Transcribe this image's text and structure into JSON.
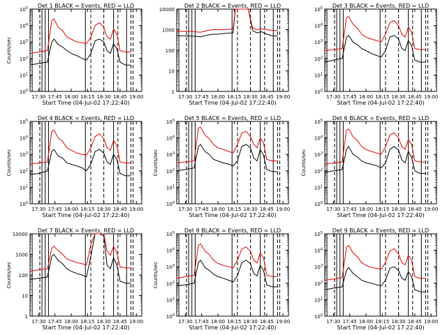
{
  "figure": {
    "x_ticks": [
      "17:30",
      "17:45",
      "18:00",
      "18:15",
      "18:30",
      "18:45",
      "19:00"
    ],
    "xlabel": "Start Time (04-Jul-02 17:22:40)",
    "ylabel": "Counts/sec",
    "colors": {
      "events": "#000000",
      "lld": "#e00000"
    }
  },
  "chart_data": [
    {
      "type": "line",
      "title": "Det 1 BLACK = Events, RED = LLD",
      "y_scale": "log",
      "ylim": [
        1,
        100000
      ],
      "y_ticks": [
        "10^0",
        "10^1",
        "10^2",
        "10^3",
        "10^4",
        "10^5"
      ],
      "ylabel": "Counts/sec",
      "x": [
        "17:22",
        "17:30",
        "17:38",
        "17:42",
        "17:44",
        "17:48",
        "17:52",
        "17:56",
        "18:00",
        "18:05",
        "18:10",
        "18:14",
        "18:18",
        "18:22",
        "18:26",
        "18:30",
        "18:33",
        "18:36",
        "18:39",
        "18:42",
        "18:45",
        "18:50",
        "18:55"
      ],
      "series": [
        {
          "name": "Events",
          "values": [
            40,
            50,
            60,
            1000,
            1500,
            700,
            500,
            300,
            200,
            150,
            100,
            80,
            200,
            1200,
            1500,
            1000,
            300,
            200,
            800,
            400,
            60,
            40,
            40
          ]
        },
        {
          "name": "LLD",
          "values": [
            200,
            250,
            300,
            20000,
            25000,
            8000,
            5000,
            2000,
            1500,
            1000,
            900,
            800,
            2000,
            10000,
            15000,
            8000,
            2000,
            1500,
            6000,
            3000,
            300,
            250,
            250
          ]
        }
      ]
    },
    {
      "type": "line",
      "title": "Det 2 BLACK = Events, RED = LLD",
      "y_scale": "log",
      "ylim": [
        1,
        10000
      ],
      "y_ticks": [
        "1",
        "10",
        "100",
        "1000",
        "10000"
      ],
      "ylabel": "",
      "x": [
        "17:22",
        "17:30",
        "17:38",
        "17:44",
        "17:50",
        "17:56",
        "18:00",
        "18:05",
        "18:10",
        "18:14",
        "18:16",
        "18:20",
        "18:28",
        "18:32",
        "18:36",
        "18:40",
        "18:45",
        "18:50",
        "18:55"
      ],
      "series": [
        {
          "name": "Events",
          "values": [
            500,
            500,
            480,
            450,
            550,
            600,
            600,
            650,
            680,
            700,
            10000,
            10000,
            10000,
            900,
            700,
            800,
            600,
            500,
            500
          ]
        },
        {
          "name": "LLD",
          "values": [
            800,
            850,
            800,
            750,
            900,
            1000,
            1000,
            1000,
            1050,
            1100,
            10000,
            10000,
            10000,
            1200,
            1000,
            1100,
            1000,
            900,
            900
          ]
        }
      ]
    },
    {
      "type": "line",
      "title": "Det 3 BLACK = Events, RED = LLD",
      "y_scale": "log",
      "ylim": [
        1,
        100000
      ],
      "y_ticks": [
        "10^0",
        "10^1",
        "10^2",
        "10^3",
        "10^4",
        "10^5"
      ],
      "ylabel": "",
      "x": [
        "17:22",
        "17:30",
        "17:38",
        "17:42",
        "17:44",
        "17:48",
        "17:52",
        "17:56",
        "18:00",
        "18:05",
        "18:10",
        "18:14",
        "18:18",
        "18:22",
        "18:26",
        "18:30",
        "18:33",
        "18:36",
        "18:39",
        "18:42",
        "18:45",
        "18:50",
        "18:55"
      ],
      "series": [
        {
          "name": "Events",
          "values": [
            60,
            80,
            100,
            2000,
            2500,
            1000,
            700,
            400,
            300,
            200,
            150,
            120,
            300,
            2000,
            2500,
            1500,
            400,
            300,
            1200,
            600,
            80,
            60,
            60
          ]
        },
        {
          "name": "LLD",
          "values": [
            300,
            350,
            400,
            30000,
            35000,
            12000,
            7000,
            3000,
            2000,
            1500,
            1200,
            1000,
            3000,
            15000,
            20000,
            10000,
            3000,
            2000,
            8000,
            4000,
            400,
            350,
            350
          ]
        }
      ]
    },
    {
      "type": "line",
      "title": "Det 4 BLACK = Events, RED = LLD",
      "y_scale": "log",
      "ylim": [
        1,
        100000
      ],
      "y_ticks": [
        "10^0",
        "10^1",
        "10^2",
        "10^3",
        "10^4",
        "10^5"
      ],
      "ylabel": "Counts/sec",
      "x": [
        "17:22",
        "17:30",
        "17:38",
        "17:42",
        "17:44",
        "17:48",
        "17:52",
        "17:56",
        "18:00",
        "18:05",
        "18:10",
        "18:14",
        "18:18",
        "18:22",
        "18:26",
        "18:30",
        "18:33",
        "18:36",
        "18:39",
        "18:42",
        "18:45",
        "18:50",
        "18:55"
      ],
      "series": [
        {
          "name": "Events",
          "values": [
            60,
            70,
            100,
            1500,
            2000,
            800,
            600,
            300,
            250,
            200,
            150,
            100,
            250,
            1500,
            2000,
            1200,
            350,
            250,
            1000,
            500,
            70,
            50,
            50
          ]
        },
        {
          "name": "LLD",
          "values": [
            250,
            300,
            350,
            25000,
            30000,
            10000,
            6000,
            2500,
            1800,
            1200,
            1000,
            900,
            2500,
            12000,
            18000,
            9000,
            2500,
            1800,
            7000,
            3500,
            350,
            300,
            300
          ]
        }
      ]
    },
    {
      "type": "line",
      "title": "Det 5 BLACK = Events, RED = LLD",
      "y_scale": "log",
      "ylim": [
        1,
        100000
      ],
      "y_ticks": [
        "10^0",
        "10^1",
        "10^2",
        "10^3",
        "10^4",
        "10^5"
      ],
      "ylabel": "Counts/sec",
      "x": [
        "17:22",
        "17:30",
        "17:38",
        "17:42",
        "17:44",
        "17:48",
        "17:52",
        "17:56",
        "18:00",
        "18:05",
        "18:10",
        "18:14",
        "18:18",
        "18:22",
        "18:26",
        "18:30",
        "18:33",
        "18:36",
        "18:39",
        "18:42",
        "18:45",
        "18:50",
        "18:55"
      ],
      "series": [
        {
          "name": "Events",
          "values": [
            100,
            120,
            150,
            3000,
            4000,
            1500,
            1000,
            500,
            400,
            300,
            250,
            200,
            400,
            3000,
            4000,
            2500,
            600,
            400,
            2000,
            900,
            120,
            90,
            90
          ]
        },
        {
          "name": "LLD",
          "values": [
            300,
            350,
            400,
            40000,
            45000,
            15000,
            9000,
            4000,
            2500,
            2000,
            1500,
            1200,
            4000,
            20000,
            25000,
            12000,
            4000,
            2500,
            10000,
            5000,
            500,
            400,
            400
          ]
        }
      ]
    },
    {
      "type": "line",
      "title": "Det 6 BLACK = Events, RED = LLD",
      "y_scale": "log",
      "ylim": [
        1,
        100000
      ],
      "y_ticks": [
        "10^0",
        "10^1",
        "10^2",
        "10^3",
        "10^4",
        "10^5"
      ],
      "ylabel": "Counts/sec",
      "x": [
        "17:22",
        "17:30",
        "17:38",
        "17:42",
        "17:44",
        "17:48",
        "17:52",
        "17:56",
        "18:00",
        "18:05",
        "18:10",
        "18:14",
        "18:18",
        "18:22",
        "18:26",
        "18:30",
        "18:33",
        "18:36",
        "18:39",
        "18:42",
        "18:45",
        "18:50",
        "18:55"
      ],
      "series": [
        {
          "name": "Events",
          "values": [
            80,
            100,
            120,
            2000,
            3000,
            1000,
            700,
            400,
            300,
            250,
            200,
            150,
            300,
            2000,
            3000,
            1800,
            450,
            300,
            1500,
            700,
            100,
            70,
            70
          ]
        },
        {
          "name": "LLD",
          "values": [
            250,
            300,
            350,
            30000,
            35000,
            12000,
            7000,
            3000,
            2000,
            1500,
            1200,
            1000,
            3000,
            15000,
            20000,
            10000,
            3000,
            2000,
            8000,
            4000,
            400,
            350,
            350
          ]
        }
      ]
    },
    {
      "type": "line",
      "title": "Det 7 BLACK = Events, RED = LLD",
      "y_scale": "log",
      "ylim": [
        1,
        10000
      ],
      "y_ticks": [
        "1",
        "10",
        "100",
        "1000",
        "10000"
      ],
      "ylabel": "Counts/sec",
      "x": [
        "17:22",
        "17:30",
        "17:38",
        "17:42",
        "17:44",
        "17:48",
        "17:52",
        "17:56",
        "18:00",
        "18:05",
        "18:10",
        "18:14",
        "18:18",
        "18:22",
        "18:26",
        "18:30",
        "18:33",
        "18:36",
        "18:39",
        "18:42",
        "18:45",
        "18:50",
        "18:55"
      ],
      "series": [
        {
          "name": "Events",
          "values": [
            60,
            70,
            80,
            800,
            1000,
            500,
            350,
            200,
            150,
            120,
            100,
            80,
            800,
            10000,
            10000,
            8000,
            300,
            200,
            700,
            300,
            50,
            40,
            40
          ]
        },
        {
          "name": "LLD",
          "values": [
            150,
            180,
            200,
            2000,
            2500,
            1500,
            1000,
            600,
            500,
            400,
            350,
            300,
            3000,
            10000,
            10000,
            10000,
            1500,
            900,
            2500,
            1200,
            250,
            220,
            220
          ]
        }
      ]
    },
    {
      "type": "line",
      "title": "Det 8 BLACK = Events, RED = LLD",
      "y_scale": "log",
      "ylim": [
        1,
        100000
      ],
      "y_ticks": [
        "10^0",
        "10^1",
        "10^2",
        "10^3",
        "10^4",
        "10^5"
      ],
      "ylabel": "Counts/sec",
      "x": [
        "17:22",
        "17:30",
        "17:38",
        "17:42",
        "17:44",
        "17:48",
        "17:52",
        "17:56",
        "18:00",
        "18:05",
        "18:10",
        "18:14",
        "18:18",
        "18:22",
        "18:26",
        "18:30",
        "18:33",
        "18:36",
        "18:39",
        "18:42",
        "18:45",
        "18:50",
        "18:55"
      ],
      "series": [
        {
          "name": "Events",
          "values": [
            70,
            80,
            100,
            1800,
            2500,
            900,
            600,
            350,
            250,
            200,
            150,
            120,
            280,
            1800,
            2500,
            1500,
            380,
            280,
            1200,
            600,
            80,
            60,
            60
          ]
        },
        {
          "name": "LLD",
          "values": [
            200,
            250,
            300,
            20000,
            25000,
            9000,
            5500,
            2500,
            1600,
            1200,
            1000,
            850,
            2500,
            12000,
            16000,
            8500,
            2500,
            1700,
            7000,
            3500,
            300,
            250,
            250
          ]
        }
      ]
    },
    {
      "type": "line",
      "title": "Det 9 BLACK = Events, RED = LLD",
      "y_scale": "log",
      "ylim": [
        1,
        100000
      ],
      "y_ticks": [
        "10^0",
        "10^1",
        "10^2",
        "10^3",
        "10^4",
        "10^5"
      ],
      "ylabel": "",
      "x": [
        "17:22",
        "17:30",
        "17:38",
        "17:42",
        "17:44",
        "17:48",
        "17:52",
        "17:56",
        "18:00",
        "18:05",
        "18:10",
        "18:14",
        "18:18",
        "18:22",
        "18:26",
        "18:30",
        "18:33",
        "18:36",
        "18:39",
        "18:42",
        "18:45",
        "18:50",
        "18:55"
      ],
      "series": [
        {
          "name": "Events",
          "values": [
            40,
            50,
            60,
            600,
            900,
            400,
            250,
            150,
            120,
            100,
            80,
            70,
            150,
            800,
            1000,
            600,
            200,
            150,
            500,
            250,
            40,
            30,
            30
          ]
        },
        {
          "name": "LLD",
          "values": [
            150,
            180,
            220,
            15000,
            20000,
            7000,
            4000,
            1800,
            1200,
            900,
            800,
            700,
            1800,
            9000,
            12000,
            6000,
            1800,
            1300,
            5000,
            2500,
            250,
            200,
            200
          ]
        }
      ]
    }
  ]
}
